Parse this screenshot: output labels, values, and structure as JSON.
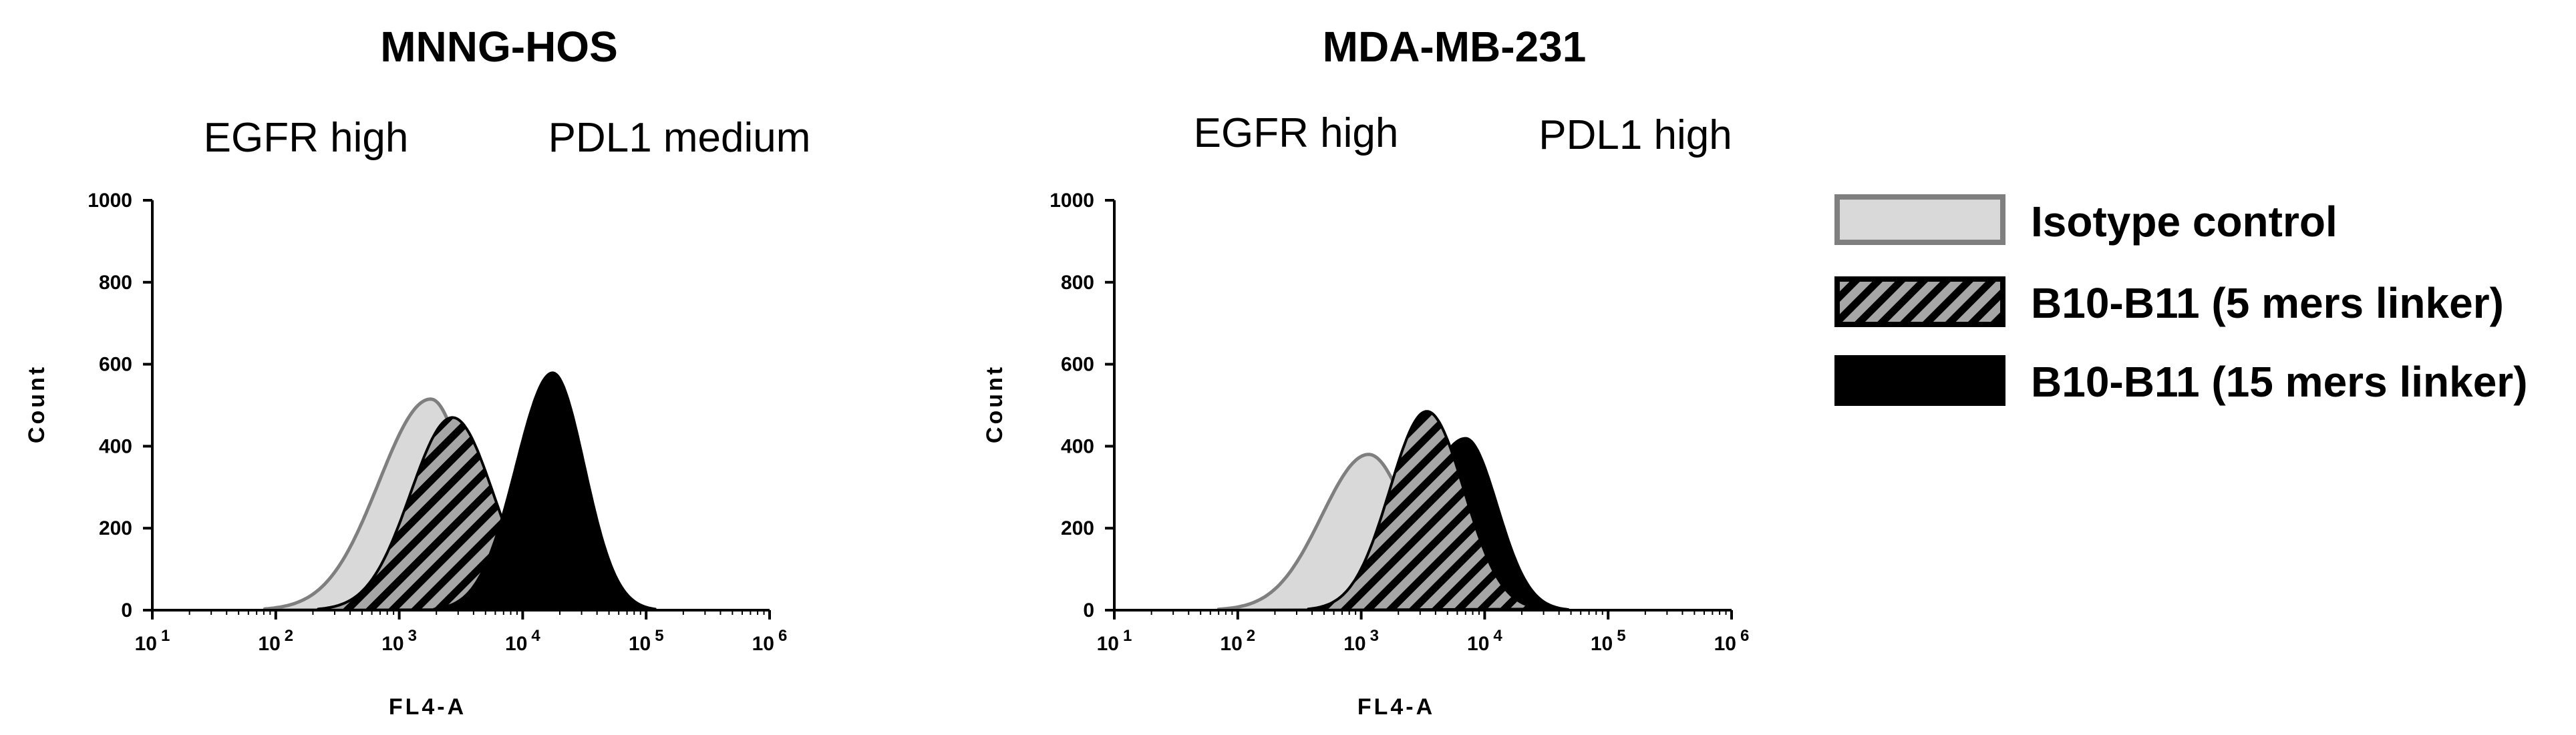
{
  "chart_data": [
    {
      "type": "histogram",
      "title": "MNNG-HOS",
      "annotations": [
        "EGFR high",
        "PDL1 medium"
      ],
      "xlabel": "FL4-A",
      "ylabel": "Count",
      "xscale": "log",
      "xlim": [
        10,
        1000000
      ],
      "ylim": [
        0,
        1000
      ],
      "x_ticks": [
        {
          "base": "10",
          "exp": "1"
        },
        {
          "base": "10",
          "exp": "2"
        },
        {
          "base": "10",
          "exp": "3"
        },
        {
          "base": "10",
          "exp": "4"
        },
        {
          "base": "10",
          "exp": "5"
        },
        {
          "base": "10",
          "exp": "6"
        }
      ],
      "y_ticks": [
        "0",
        "200",
        "400",
        "600",
        "800",
        "1000"
      ],
      "series": [
        {
          "name": "Isotype control",
          "style": "isotype",
          "peak_x": 1800,
          "peak_count": 515,
          "left_width_decades": 0.42,
          "right_width_decades": 0.3
        },
        {
          "name": "B10-B11 (5 mers linker)",
          "style": "hatched",
          "peak_x": 2700,
          "peak_count": 470,
          "left_width_decades": 0.34,
          "right_width_decades": 0.33
        },
        {
          "name": "B10-B11 (15 mers linker)",
          "style": "black",
          "peak_x": 17500,
          "peak_count": 580,
          "left_width_decades": 0.3,
          "right_width_decades": 0.26
        }
      ]
    },
    {
      "type": "histogram",
      "title": "MDA-MB-231",
      "annotations": [
        "EGFR high",
        "PDL1 high"
      ],
      "xlabel": "FL4-A",
      "ylabel": "Count",
      "xscale": "log",
      "xlim": [
        10,
        1000000
      ],
      "ylim": [
        0,
        1000
      ],
      "x_ticks": [
        {
          "base": "10",
          "exp": "1"
        },
        {
          "base": "10",
          "exp": "2"
        },
        {
          "base": "10",
          "exp": "3"
        },
        {
          "base": "10",
          "exp": "4"
        },
        {
          "base": "10",
          "exp": "5"
        },
        {
          "base": "10",
          "exp": "6"
        }
      ],
      "y_ticks": [
        "0",
        "200",
        "400",
        "600",
        "800",
        "1000"
      ],
      "series": [
        {
          "name": "Isotype control",
          "style": "isotype",
          "peak_x": 1150,
          "peak_count": 380,
          "left_width_decades": 0.38,
          "right_width_decades": 0.32
        },
        {
          "name": "B10-B11 (15 mers linker)",
          "style": "black",
          "peak_x": 7000,
          "peak_count": 420,
          "left_width_decades": 0.37,
          "right_width_decades": 0.26
        },
        {
          "name": "B10-B11 (5 mers linker)",
          "style": "hatched",
          "peak_x": 3400,
          "peak_count": 485,
          "left_width_decades": 0.3,
          "right_width_decades": 0.3
        }
      ]
    }
  ],
  "legend": {
    "position": "right",
    "items": [
      {
        "label": "Isotype control",
        "style": "isotype"
      },
      {
        "label": "B10-B11 (5 mers linker)",
        "style": "hatched"
      },
      {
        "label": "B10-B11 (15 mers linker)",
        "style": "black"
      }
    ]
  },
  "colors": {
    "isotype_fill": "#d9d9d9",
    "isotype_stroke": "#7f7f7f",
    "hatch_bg": "#a6a6a6",
    "hatch_line": "#000000",
    "black": "#000000"
  }
}
